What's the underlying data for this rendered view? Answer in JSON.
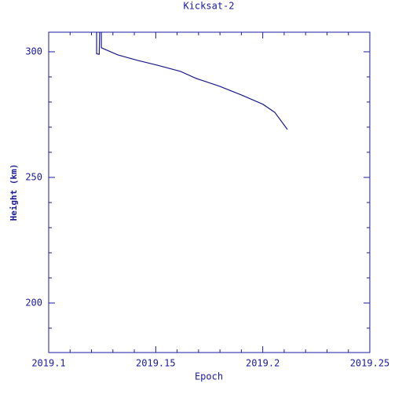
{
  "chart_data": {
    "type": "line",
    "title": "Kicksat-2",
    "x_label": "Epoch",
    "y_label": "Height (km)",
    "x": [
      2019.1224,
      2019.1224,
      2019.1236,
      2019.1238,
      2019.1246,
      2019.1246,
      2019.1323,
      2019.1414,
      2019.1506,
      2019.1616,
      2019.1689,
      2019.1799,
      2019.1909,
      2019.2001,
      2019.2056,
      2019.2115
    ],
    "series": [
      {
        "name": "Kicksat-2",
        "color": "#1a1a8c",
        "values": [
          308,
          299.2,
          299.0,
          308,
          308,
          301.6,
          298.75,
          296.6,
          294.7,
          292.2,
          289.4,
          286.25,
          282.5,
          279.1,
          275.9,
          269.1
        ]
      }
    ],
    "xlim": [
      2019.1,
      2019.25
    ],
    "ylim": [
      180.3,
      307.8
    ],
    "xticks": [
      2019.1,
      2019.15,
      2019.2,
      2019.25
    ],
    "yticks": [
      200,
      250,
      300
    ],
    "x_minor_ticks": [
      2019.11,
      2019.12,
      2019.13,
      2019.14,
      2019.16,
      2019.17,
      2019.18,
      2019.19,
      2019.21,
      2019.22,
      2019.23,
      2019.24
    ],
    "y_minor_ticks": [
      190,
      210,
      220,
      230,
      240,
      260,
      270,
      280,
      290
    ],
    "axis_color": "#1a1aa0"
  }
}
